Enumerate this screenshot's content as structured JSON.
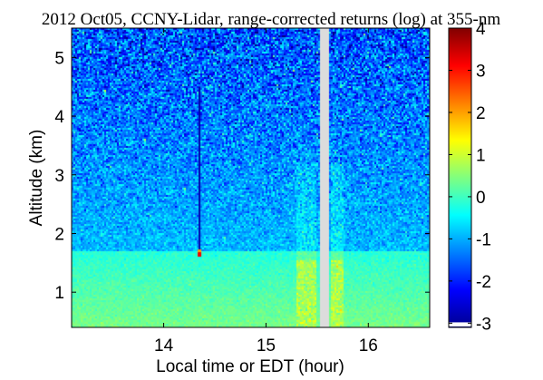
{
  "chart_data": {
    "type": "heatmap",
    "title": "2012 Oct05, CCNY-Lidar, range-corrected returns (log) at 355-nm",
    "xlabel": "Local time or EDT (hour)",
    "ylabel": "Altitude (km)",
    "xlim": [
      13.1,
      16.6
    ],
    "ylim": [
      0.4,
      5.5
    ],
    "x_ticks": [
      14,
      15,
      16
    ],
    "y_ticks": [
      1,
      2,
      3,
      4,
      5
    ],
    "colorbar": {
      "colormap": "jet",
      "range": [
        -3.1,
        4
      ],
      "ticks": [
        -3,
        -2,
        -1,
        0,
        1,
        2,
        3,
        4
      ]
    },
    "grid": false,
    "features": {
      "boundary_layer_top_km": 1.7,
      "surface_layer_value": 0.4,
      "free_troposphere_value": -0.9,
      "aloft_value": -1.7,
      "missing_data_interval_hour": [
        15.53,
        15.61
      ],
      "missing_data_color": "#dcdcdc",
      "cloud_spike_hour": 14.35,
      "cloud_spike_altitude_km": [
        1.62,
        4.5
      ],
      "cloud_spike_peak_value": 3.2,
      "cloud_spike_column_value": -2.8,
      "enhanced_column_intervals_hour": [
        [
          15.3,
          15.5
        ],
        [
          15.63,
          15.75
        ]
      ],
      "enhanced_column_value": 1.0
    }
  }
}
